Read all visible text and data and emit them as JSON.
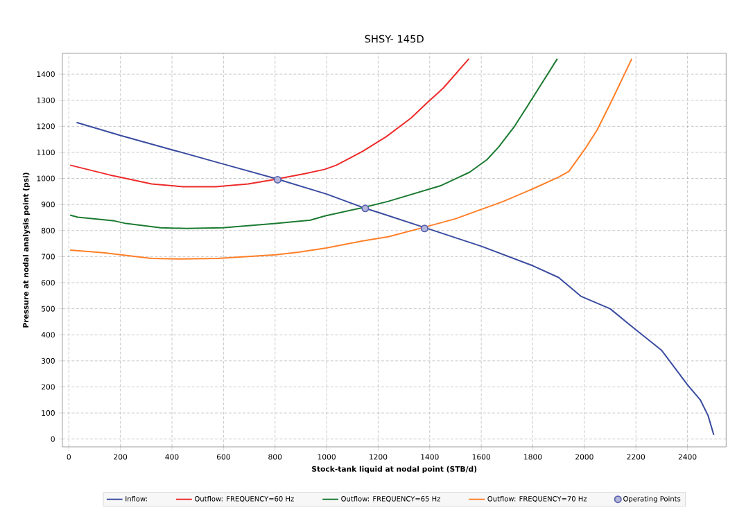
{
  "chart_data": {
    "type": "line",
    "title": "SHSY- 145D",
    "xlabel": "Stock-tank liquid at nodal point (STB/d)",
    "ylabel": "Pressure at nodal analysis point (psi)",
    "xlim": [
      -25,
      2550
    ],
    "ylim": [
      -30,
      1480
    ],
    "xticks": [
      0,
      200,
      400,
      600,
      800,
      1000,
      1200,
      1400,
      1600,
      1800,
      2000,
      2200,
      2400
    ],
    "yticks": [
      0,
      100,
      200,
      300,
      400,
      500,
      600,
      700,
      800,
      900,
      1000,
      1100,
      1200,
      1300,
      1400
    ],
    "grid": true,
    "legend": "bottom",
    "line_style": "solid",
    "series": [
      {
        "name": "Inflow:",
        "color": "#3a4ba0",
        "x": [
          30,
          200,
          400,
          600,
          800,
          1000,
          1150,
          1200,
          1400,
          1600,
          1800,
          1900,
          1988,
          2100,
          2184,
          2300,
          2400,
          2450,
          2480,
          2502
        ],
        "values": [
          1215,
          1165,
          1110,
          1055,
          1000,
          940,
          885,
          870,
          805,
          740,
          665,
          620,
          547,
          500,
          432,
          340,
          208,
          150,
          90,
          16
        ]
      },
      {
        "name": "Outflow: FREQUENCY=60 Hz",
        "color": "#ee2a2a",
        "x": [
          5,
          160,
          321,
          444,
          570,
          696,
          803,
          918,
          993,
          1038,
          1140,
          1231,
          1328,
          1391,
          1453,
          1552
        ],
        "values": [
          1051,
          1013,
          979,
          968,
          968,
          979,
          997,
          1019,
          1035,
          1051,
          1104,
          1160,
          1232,
          1291,
          1347,
          1459
        ]
      },
      {
        "name": "Outflow: FREQUENCY=65 Hz",
        "color": "#1a7a30",
        "x": [
          5,
          35,
          177,
          222,
          356,
          455,
          597,
          803,
          937,
          993,
          1140,
          1239,
          1445,
          1555,
          1622,
          1667,
          1729,
          1793,
          1895
        ],
        "values": [
          859,
          851,
          837,
          827,
          811,
          808,
          811,
          827,
          840,
          856,
          888,
          912,
          973,
          1024,
          1072,
          1120,
          1200,
          1299,
          1459
        ]
      },
      {
        "name": "Outflow: FREQUENCY=70 Hz",
        "color": "#ff7f27",
        "x": [
          5,
          134,
          321,
          436,
          578,
          803,
          891,
          998,
          1140,
          1239,
          1373,
          1499,
          1686,
          1793,
          1900,
          1940,
          2007,
          2050,
          2109,
          2184
        ],
        "values": [
          725,
          715,
          693,
          691,
          693,
          707,
          717,
          733,
          760,
          776,
          811,
          845,
          912,
          957,
          1005,
          1027,
          1120,
          1187,
          1304,
          1459
        ]
      },
      {
        "name": "Operating Points",
        "type": "scatter",
        "marker": "circle",
        "color": "#5a62b0",
        "x": [
          810,
          1150,
          1380
        ],
        "values": [
          995,
          885,
          808
        ]
      }
    ]
  }
}
